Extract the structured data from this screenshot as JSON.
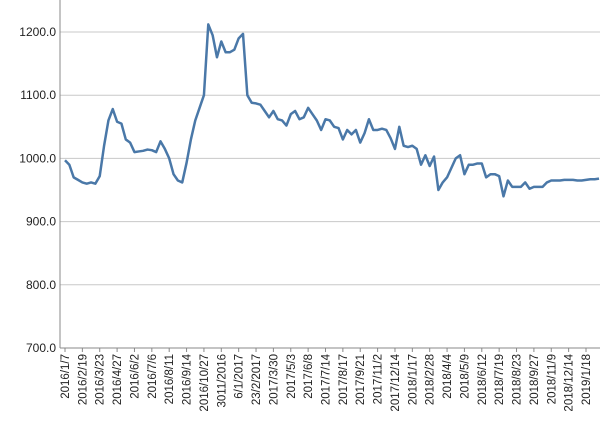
{
  "chart_data": {
    "type": "line",
    "categories": [
      "2016/1/7",
      null,
      null,
      null,
      "2016/2/19",
      null,
      null,
      null,
      "2016/3/23",
      null,
      null,
      null,
      "2016/4/27",
      null,
      null,
      null,
      "2016/6/2",
      null,
      null,
      null,
      "2016/7/6",
      null,
      null,
      null,
      "2016/8/11",
      null,
      null,
      null,
      "2016/9/14",
      null,
      null,
      null,
      "2016/10/27",
      null,
      null,
      null,
      "3011/2016",
      null,
      null,
      null,
      "6/1/2017",
      null,
      null,
      null,
      "23/2/2017",
      null,
      null,
      null,
      "2017/3/30",
      null,
      null,
      null,
      "2017/5/3",
      null,
      null,
      null,
      "2017/6/8",
      null,
      null,
      null,
      "2017/7/14",
      null,
      null,
      null,
      "2017/8/17",
      null,
      null,
      null,
      "2017/9/21",
      null,
      null,
      null,
      "2017/11/2",
      null,
      null,
      null,
      "2017/12/14",
      null,
      null,
      null,
      "2018/1/17",
      null,
      null,
      null,
      "2018/2/28",
      null,
      null,
      null,
      "2018/4/4",
      null,
      null,
      null,
      "2018/5/9",
      null,
      null,
      null,
      "2018/6/12",
      null,
      null,
      null,
      "2018/7/19",
      null,
      null,
      null,
      "2018/8/23",
      null,
      null,
      null,
      "2018/9/27",
      null,
      null,
      null,
      "2018/11/9",
      null,
      null,
      null,
      "2018/12/14",
      null,
      null,
      null,
      "2019/1/18",
      null,
      null,
      null
    ],
    "series": [
      {
        "color": "#4a78a8",
        "values": [
          997,
          990,
          970,
          966,
          962,
          960,
          962,
          960,
          972,
          1020,
          1060,
          1078,
          1058,
          1055,
          1030,
          1025,
          1010,
          1011,
          1012,
          1014,
          1013,
          1010,
          1027,
          1015,
          1000,
          975,
          965,
          962,
          993,
          1030,
          1060,
          1080,
          1100,
          1212,
          1195,
          1160,
          1185,
          1168,
          1168,
          1172,
          1190,
          1197,
          1100,
          1088,
          1087,
          1085,
          1075,
          1065,
          1075,
          1062,
          1060,
          1052,
          1070,
          1075,
          1062,
          1065,
          1080,
          1070,
          1060,
          1045,
          1062,
          1060,
          1050,
          1048,
          1030,
          1045,
          1038,
          1045,
          1025,
          1040,
          1062,
          1045,
          1045,
          1047,
          1045,
          1032,
          1015,
          1050,
          1020,
          1018,
          1020,
          1015,
          990,
          1005,
          988,
          1003,
          950,
          962,
          970,
          985,
          1000,
          1005,
          975,
          990,
          990,
          992,
          992,
          970,
          975,
          975,
          972,
          940,
          965,
          955,
          955,
          955,
          962,
          952,
          955,
          955,
          955,
          962,
          965,
          965,
          965,
          966,
          966,
          966,
          965,
          965,
          966,
          967,
          967,
          968
        ]
      }
    ],
    "ylim": [
      700,
      1200
    ],
    "yticks": [
      {
        "value": 700,
        "label": "700.0"
      },
      {
        "value": 800,
        "label": "800.0"
      },
      {
        "value": 900,
        "label": "900.0"
      },
      {
        "value": 1000,
        "label": "1000.0"
      },
      {
        "value": 1100,
        "label": "1100.0"
      },
      {
        "value": 1200,
        "label": "1200.0"
      }
    ],
    "grid": true
  }
}
